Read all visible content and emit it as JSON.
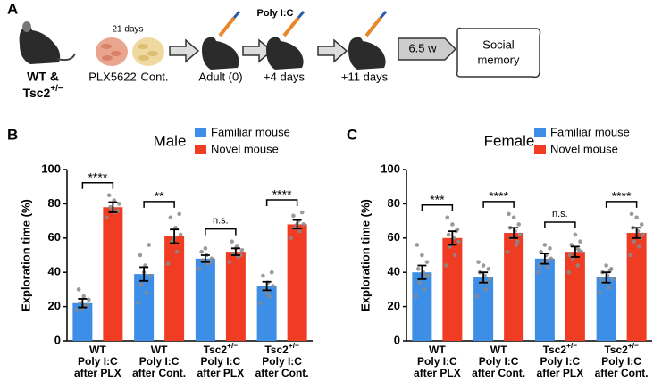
{
  "schematic": {
    "label": "A",
    "duration": "21 days",
    "genotype": [
      "WT &",
      "Tsc2+/−"
    ],
    "diets": [
      "PLX5622",
      "Cont."
    ],
    "injection": "Poly I:C",
    "timepoints": [
      "Adult (0)",
      "+4 days",
      "+11 days"
    ],
    "wait": "6.5 w",
    "test": [
      "Social",
      "memory"
    ]
  },
  "chart_data": [
    {
      "type": "bar",
      "panel_label": "B",
      "title": "Male",
      "ylabel": "Exploration time (%)",
      "categories": [
        [
          "WT",
          "Poly I:C",
          "after PLX"
        ],
        [
          "WT",
          "Poly I:C",
          "after Cont."
        ],
        [
          "Tsc2+/−",
          "Poly I:C",
          "after PLX"
        ],
        [
          "Tsc2+/−",
          "Poly I:C",
          "after Cont."
        ]
      ],
      "series": [
        {
          "name": "Familiar mouse",
          "color": "#3d8ee6",
          "values": [
            22,
            39,
            48,
            32
          ],
          "errors": [
            2.5,
            4,
            2,
            2.5
          ],
          "points": [
            [
              18,
              20,
              22,
              24,
              26,
              30,
              21,
              19
            ],
            [
              22,
              28,
              33,
              38,
              44,
              50,
              56,
              40
            ],
            [
              42,
              45,
              47,
              48,
              50,
              52,
              46,
              54
            ],
            [
              22,
              26,
              30,
              32,
              34,
              38,
              40,
              28
            ]
          ]
        },
        {
          "name": "Novel mouse",
          "color": "#f03c22",
          "values": [
            78,
            61,
            52,
            68
          ],
          "errors": [
            3,
            4,
            2,
            2.5
          ],
          "points": [
            [
              72,
              75,
              78,
              80,
              82,
              85,
              76,
              77
            ],
            [
              45,
              52,
              58,
              62,
              66,
              72,
              74,
              60
            ],
            [
              46,
              49,
              51,
              53,
              55,
              58,
              50,
              54
            ],
            [
              60,
              64,
              66,
              68,
              70,
              73,
              75,
              68
            ]
          ]
        }
      ],
      "significance": [
        "****",
        "**",
        "n.s.",
        "****"
      ],
      "ylim": [
        0,
        100
      ],
      "yticks": [
        0,
        20,
        40,
        60,
        80,
        100
      ]
    },
    {
      "type": "bar",
      "panel_label": "C",
      "title": "Female",
      "ylabel": "Exploration time (%)",
      "categories": [
        [
          "WT",
          "Poly I:C",
          "after PLX"
        ],
        [
          "WT",
          "Poly I:C",
          "after Cont."
        ],
        [
          "Tsc2+/−",
          "Poly I:C",
          "after PLX"
        ],
        [
          "Tsc2+/−",
          "Poly I:C",
          "after Cont."
        ]
      ],
      "series": [
        {
          "name": "Familiar mouse",
          "color": "#3d8ee6",
          "values": [
            40,
            37,
            48,
            37
          ],
          "errors": [
            4,
            3,
            3,
            3
          ],
          "points": [
            [
              26,
              30,
              34,
              38,
              40,
              42,
              46,
              50,
              56,
              38
            ],
            [
              26,
              30,
              34,
              36,
              38,
              40,
              42,
              44,
              46,
              34
            ],
            [
              40,
              43,
              46,
              48,
              50,
              52,
              54,
              56,
              44,
              47
            ],
            [
              28,
              31,
              34,
              36,
              38,
              40,
              42,
              44,
              36,
              41
            ]
          ]
        },
        {
          "name": "Novel mouse",
          "color": "#f03c22",
          "values": [
            60,
            63,
            52,
            63
          ],
          "errors": [
            4,
            3,
            3,
            3
          ],
          "points": [
            [
              44,
              50,
              55,
              58,
              60,
              62,
              65,
              68,
              72,
              64
            ],
            [
              52,
              56,
              60,
              62,
              64,
              66,
              68,
              72,
              74,
              58
            ],
            [
              40,
              44,
              48,
              52,
              54,
              56,
              58,
              62,
              50,
              53
            ],
            [
              50,
              55,
              58,
              62,
              64,
              66,
              68,
              72,
              74,
              60
            ]
          ]
        }
      ],
      "significance": [
        "***",
        "****",
        "n.s.",
        "****"
      ],
      "ylim": [
        0,
        100
      ],
      "yticks": [
        0,
        20,
        40,
        60,
        80,
        100
      ]
    }
  ]
}
